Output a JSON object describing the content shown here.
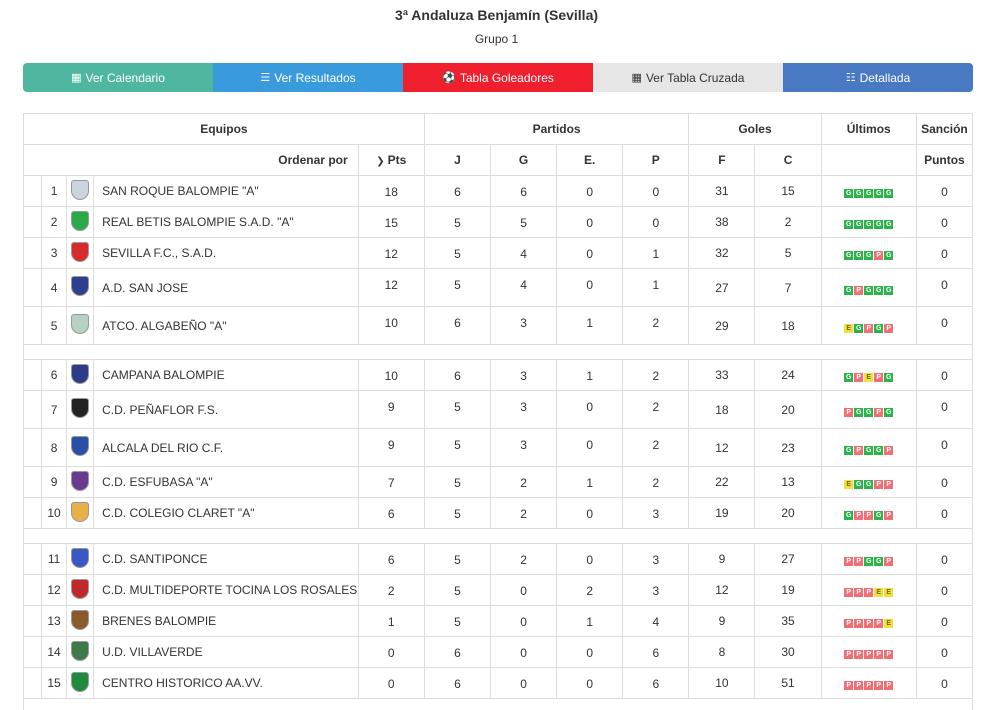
{
  "title": "3ª Andaluza Benjamín (Sevilla)",
  "subtitle": "Grupo 1",
  "buttons": [
    {
      "label": "Ver Calendario",
      "icon": "calendar-icon",
      "color": "#4fb7a0"
    },
    {
      "label": "Ver Resultados",
      "icon": "list-icon",
      "color": "#3a9bdc"
    },
    {
      "label": "Tabla Goleadores",
      "icon": "soccer-ball-icon",
      "color": "#f01f2e"
    },
    {
      "label": "Ver Tabla Cruzada",
      "icon": "grid-icon",
      "color": "#e6e6e6"
    },
    {
      "label": "Detallada",
      "icon": "list-alt-icon",
      "color": "#4a79c4"
    }
  ],
  "table": {
    "group_headers": {
      "equipos": "Equipos",
      "partidos": "Partidos",
      "goles": "Goles",
      "ultimos": "Últimos",
      "sancion": "Sanción"
    },
    "sub_headers": {
      "ordenar": "Ordenar por",
      "pts": "Pts",
      "j": "J",
      "g": "G",
      "e": "E.",
      "p": "P",
      "f": "F",
      "c": "C",
      "puntos": "Puntos"
    },
    "rows": [
      {
        "pos": "1",
        "team": "SAN ROQUE BALOMPIE \"A\"",
        "pts": "18",
        "j": "6",
        "g": "6",
        "e": "0",
        "p": "0",
        "f": "31",
        "c": "15",
        "ult": [
          "G",
          "G",
          "G",
          "G",
          "G"
        ],
        "sancion": "0",
        "crest": "#c9d4e0"
      },
      {
        "pos": "2",
        "team": "REAL BETIS BALOMPIE S.A.D. \"A\"",
        "pts": "15",
        "j": "5",
        "g": "5",
        "e": "0",
        "p": "0",
        "f": "38",
        "c": "2",
        "ult": [
          "G",
          "G",
          "G",
          "G",
          "G"
        ],
        "sancion": "0",
        "crest": "#2aa84a"
      },
      {
        "pos": "3",
        "team": "SEVILLA F.C., S.A.D.",
        "pts": "12",
        "j": "5",
        "g": "4",
        "e": "0",
        "p": "1",
        "f": "32",
        "c": "5",
        "ult": [
          "G",
          "G",
          "G",
          "P",
          "G"
        ],
        "sancion": "0",
        "crest": "#d62b2b"
      },
      {
        "pos": "4",
        "team": "A.D. SAN JOSE",
        "pts": "12",
        "j": "5",
        "g": "4",
        "e": "0",
        "p": "1",
        "f": "27",
        "c": "7",
        "ult": [
          "G",
          "P",
          "G",
          "G",
          "G"
        ],
        "sancion": "0",
        "crest": "#2d3f8f"
      },
      {
        "pos": "5",
        "team": "ATCO. ALGABEÑO \"A\"",
        "pts": "10",
        "j": "6",
        "g": "3",
        "e": "1",
        "p": "2",
        "f": "29",
        "c": "18",
        "ult": [
          "E",
          "G",
          "P",
          "G",
          "P"
        ],
        "sancion": "0",
        "crest": "#b6d0c4"
      },
      {
        "pos": "6",
        "team": "CAMPANA BALOMPIE",
        "pts": "10",
        "j": "6",
        "g": "3",
        "e": "1",
        "p": "2",
        "f": "33",
        "c": "24",
        "ult": [
          "G",
          "P",
          "E",
          "P",
          "G"
        ],
        "sancion": "0",
        "crest": "#2d3c8a"
      },
      {
        "pos": "7",
        "team": "C.D. PEÑAFLOR F.S.",
        "pts": "9",
        "j": "5",
        "g": "3",
        "e": "0",
        "p": "2",
        "f": "18",
        "c": "20",
        "ult": [
          "P",
          "G",
          "G",
          "P",
          "G"
        ],
        "sancion": "0",
        "crest": "#222222"
      },
      {
        "pos": "8",
        "team": "ALCALA DEL RIO C.F.",
        "pts": "9",
        "j": "5",
        "g": "3",
        "e": "0",
        "p": "2",
        "f": "12",
        "c": "23",
        "ult": [
          "G",
          "P",
          "G",
          "G",
          "P"
        ],
        "sancion": "0",
        "crest": "#2950a8"
      },
      {
        "pos": "9",
        "team": "C.D. ESFUBASA \"A\"",
        "pts": "7",
        "j": "5",
        "g": "2",
        "e": "1",
        "p": "2",
        "f": "22",
        "c": "13",
        "ult": [
          "E",
          "G",
          "G",
          "P",
          "P"
        ],
        "sancion": "0",
        "crest": "#6a3a8c"
      },
      {
        "pos": "10",
        "team": "C.D. COLEGIO CLARET \"A\"",
        "pts": "6",
        "j": "5",
        "g": "2",
        "e": "0",
        "p": "3",
        "f": "19",
        "c": "20",
        "ult": [
          "G",
          "P",
          "P",
          "G",
          "P"
        ],
        "sancion": "0",
        "crest": "#e8b04a"
      },
      {
        "pos": "11",
        "team": "C.D. SANTIPONCE",
        "pts": "6",
        "j": "5",
        "g": "2",
        "e": "0",
        "p": "3",
        "f": "9",
        "c": "27",
        "ult": [
          "P",
          "P",
          "G",
          "G",
          "P"
        ],
        "sancion": "0",
        "crest": "#3a58c4"
      },
      {
        "pos": "12",
        "team": "C.D. MULTIDEPORTE TOCINA LOS ROSALES",
        "pts": "2",
        "j": "5",
        "g": "0",
        "e": "2",
        "p": "3",
        "f": "12",
        "c": "19",
        "ult": [
          "P",
          "P",
          "P",
          "E",
          "E"
        ],
        "sancion": "0",
        "crest": "#c0282b"
      },
      {
        "pos": "13",
        "team": "BRENES BALOMPIE",
        "pts": "1",
        "j": "5",
        "g": "0",
        "e": "1",
        "p": "4",
        "f": "9",
        "c": "35",
        "ult": [
          "P",
          "P",
          "P",
          "P",
          "E"
        ],
        "sancion": "0",
        "crest": "#8a5a2a"
      },
      {
        "pos": "14",
        "team": "U.D. VILLAVERDE",
        "pts": "0",
        "j": "6",
        "g": "0",
        "e": "0",
        "p": "6",
        "f": "8",
        "c": "30",
        "ult": [
          "P",
          "P",
          "P",
          "P",
          "P"
        ],
        "sancion": "0",
        "crest": "#3c7a4a"
      },
      {
        "pos": "15",
        "team": "CENTRO HISTORICO AA.VV.",
        "pts": "0",
        "j": "6",
        "g": "0",
        "e": "0",
        "p": "6",
        "f": "10",
        "c": "51",
        "ult": [
          "P",
          "P",
          "P",
          "P",
          "P"
        ],
        "sancion": "0",
        "crest": "#1e8a3e"
      }
    ]
  }
}
